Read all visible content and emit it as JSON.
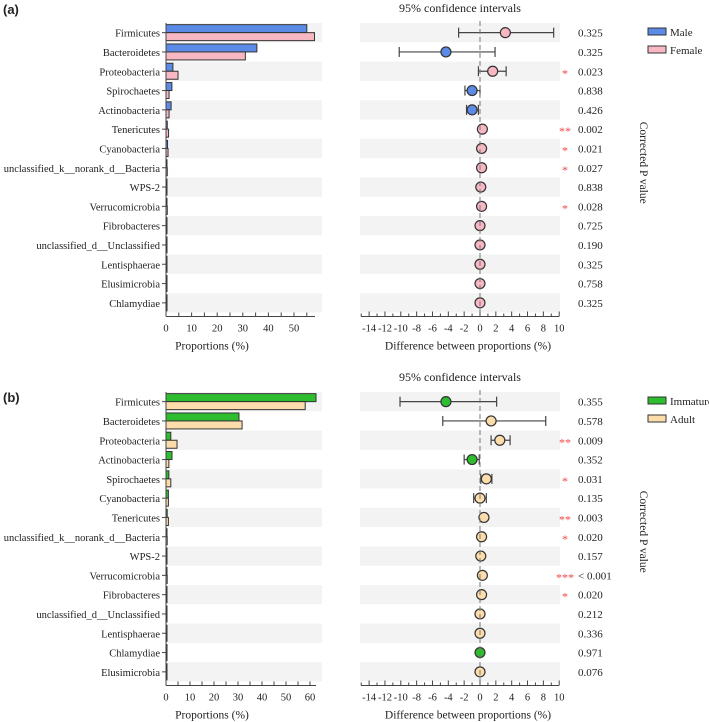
{
  "chart_data": [
    {
      "type": "extended-error-bar",
      "panel_label": "(a)",
      "title": "95% confidence intervals",
      "left_xlabel": "Proportions (%)",
      "right_xlabel": "Difference between proportions (%)",
      "pvalue_label": "Corrected P value",
      "left_ticks": [
        0,
        10,
        20,
        30,
        40,
        50
      ],
      "left_xlim": [
        0,
        58
      ],
      "right_ticks": [
        -14,
        -12,
        -10,
        -8,
        -6,
        -4,
        -2,
        0,
        2,
        4,
        6,
        8,
        10
      ],
      "right_xlim": [
        -15,
        10
      ],
      "groups": [
        {
          "name": "Male",
          "color": "#5b8be6"
        },
        {
          "name": "Female",
          "color": "#f7b8c4"
        }
      ],
      "legend_position": "top-right",
      "categories": [
        "Firmicutes",
        "Bacteroidetes",
        "Proteobacteria",
        "Spirochaetes",
        "Actinobacteria",
        "Tenericutes",
        "Cyanobacteria",
        "unclassified_k__norank_d__Bacteria",
        "WPS-2",
        "Verrucomicrobia",
        "Fibrobacteres",
        "unclassified_d__Unclassified",
        "Lentisphaerae",
        "Elusimicrobia",
        "Chlamydiae"
      ],
      "group1_values": [
        55,
        35.5,
        2.7,
        2.3,
        2.0,
        0.5,
        0.6,
        0.3,
        0.2,
        0.3,
        0.2,
        0.1,
        0.1,
        0.1,
        0.1
      ],
      "group2_values": [
        58,
        31,
        4.7,
        1.2,
        1.2,
        1.0,
        0.8,
        0.5,
        0.3,
        0.5,
        0.2,
        0.1,
        0.1,
        0.1,
        0.1
      ],
      "diff": [
        3.2,
        -4.3,
        1.6,
        -1.0,
        -1.0,
        0.3,
        0.2,
        0.2,
        0.1,
        0.2,
        0.0,
        0.0,
        0.0,
        0.0,
        0.0
      ],
      "ci_low": [
        -2.7,
        -10.2,
        -0.2,
        -1.9,
        -1.7,
        0.1,
        0.0,
        0.0,
        -0.1,
        0.0,
        -0.1,
        -0.1,
        -0.1,
        -0.1,
        -0.1
      ],
      "ci_high": [
        9.3,
        1.9,
        3.3,
        0.0,
        -0.2,
        0.5,
        0.5,
        0.4,
        0.3,
        0.4,
        0.1,
        0.1,
        0.1,
        0.1,
        0.1
      ],
      "diff_group": [
        2,
        1,
        2,
        1,
        1,
        2,
        2,
        2,
        2,
        2,
        2,
        2,
        2,
        2,
        2
      ],
      "significance": [
        "",
        "",
        "*",
        "",
        "",
        "**",
        "*",
        "*",
        "",
        "*",
        "",
        "",
        "",
        "",
        ""
      ],
      "pvalues": [
        "0.325",
        "0.325",
        "0.023",
        "0.838",
        "0.426",
        "0.002",
        "0.021",
        "0.027",
        "0.838",
        "0.028",
        "0.725",
        "0.190",
        "0.325",
        "0.758",
        "0.325"
      ]
    },
    {
      "type": "extended-error-bar",
      "panel_label": "(b)",
      "title": "95% confidence intervals",
      "left_xlabel": "Proportions (%)",
      "right_xlabel": "Difference between proportions (%)",
      "pvalue_label": "Corrected P value",
      "left_ticks": [
        0,
        10,
        20,
        30,
        40,
        50,
        60
      ],
      "left_xlim": [
        0,
        64
      ],
      "right_ticks": [
        -14,
        -12,
        -10,
        -8,
        -6,
        -4,
        -2,
        0,
        2,
        4,
        6,
        8,
        10
      ],
      "right_xlim": [
        -15,
        10
      ],
      "groups": [
        {
          "name": "Immature",
          "color": "#2ebd2e"
        },
        {
          "name": "Adult",
          "color": "#fbdcaa"
        }
      ],
      "legend_position": "top-right",
      "categories": [
        "Firmicutes",
        "Bacteroidetes",
        "Proteobacteria",
        "Actinobacteria",
        "Spirochaetes",
        "Cyanobacteria",
        "Tenericutes",
        "unclassified_k__norank_d__Bacteria",
        "WPS-2",
        "Verrucomicrobia",
        "Fibrobacteres",
        "unclassified_d__Unclassified",
        "Lentisphaerae",
        "Chlamydiae",
        "Elusimicrobia"
      ],
      "group1_values": [
        62.5,
        30.4,
        2.0,
        2.5,
        1.2,
        1.0,
        0.5,
        0.3,
        0.2,
        0.2,
        0.2,
        0.1,
        0.1,
        0.1,
        0.1
      ],
      "group2_values": [
        58,
        31.7,
        4.6,
        1.2,
        2.0,
        1.0,
        1.0,
        0.5,
        0.3,
        0.5,
        0.4,
        0.1,
        0.1,
        0.1,
        0.1
      ],
      "diff": [
        -4.3,
        1.4,
        2.5,
        -1.0,
        0.8,
        0.0,
        0.5,
        0.2,
        0.1,
        0.3,
        0.2,
        0.0,
        0.0,
        0.0,
        0.0
      ],
      "ci_low": [
        -10.1,
        -4.7,
        1.4,
        -2.0,
        0.1,
        -0.8,
        0.2,
        0.0,
        -0.1,
        0.1,
        0.0,
        -0.1,
        -0.1,
        -0.1,
        -0.1
      ],
      "ci_high": [
        2.1,
        8.3,
        3.8,
        -0.1,
        1.5,
        0.8,
        0.8,
        0.4,
        0.3,
        0.5,
        0.4,
        0.1,
        0.1,
        0.1,
        0.1
      ],
      "diff_group": [
        1,
        2,
        2,
        1,
        2,
        2,
        2,
        2,
        2,
        2,
        2,
        2,
        2,
        1,
        2
      ],
      "significance": [
        "",
        "",
        "**",
        "",
        "*",
        "",
        "**",
        "*",
        "",
        "***",
        "*",
        "",
        "",
        "",
        ""
      ],
      "pvalues": [
        "0.355",
        "0.578",
        "0.009",
        "0.352",
        "0.031",
        "0.135",
        "0.003",
        "0.020",
        "0.157",
        "< 0.001",
        "0.020",
        "0.212",
        "0.336",
        "0.971",
        "0.076"
      ]
    }
  ]
}
